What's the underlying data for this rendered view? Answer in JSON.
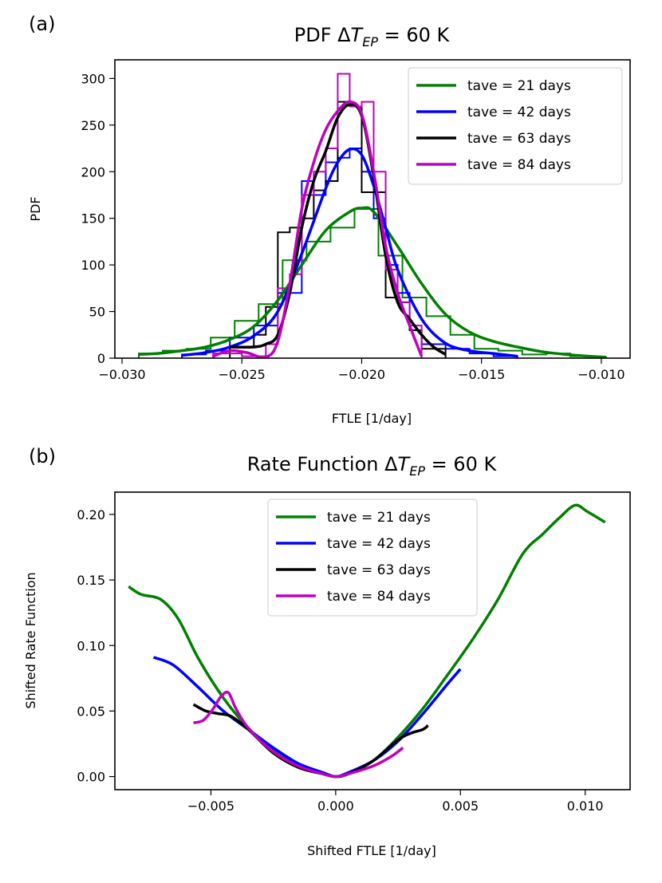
{
  "chart_data": [
    {
      "panel_label": "(a)",
      "type": "line",
      "title": "PDF ΔT_EP = 60 K",
      "title_parts": {
        "pre": "PDF Δ",
        "var": "T",
        "sub": "EP",
        "post": " = 60 K"
      },
      "xlabel": "FTLE [1/day]",
      "ylabel": "PDF",
      "xlim": [
        -0.0303,
        -0.0088
      ],
      "ylim": [
        0,
        320
      ],
      "xticks": [
        -0.03,
        -0.025,
        -0.02,
        -0.015,
        -0.01
      ],
      "xtick_labels": [
        "−0.030",
        "−0.025",
        "−0.020",
        "−0.015",
        "−0.010"
      ],
      "yticks": [
        0,
        50,
        100,
        150,
        200,
        250,
        300
      ],
      "ytick_labels": [
        "0",
        "50",
        "100",
        "150",
        "200",
        "250",
        "300"
      ],
      "legend_position": "upper right",
      "series": [
        {
          "name": "tave = 21 days",
          "color": "#008000",
          "kde": {
            "x": [
              -0.0293,
              -0.0285,
              -0.0275,
              -0.0265,
              -0.0255,
              -0.0245,
              -0.0235,
              -0.0225,
              -0.0215,
              -0.0205,
              -0.02,
              -0.0195,
              -0.0185,
              -0.0175,
              -0.0165,
              -0.0155,
              -0.0145,
              -0.0135,
              -0.0125,
              -0.0115,
              -0.0105,
              -0.0098
            ],
            "y": [
              4,
              5,
              8,
              12,
              20,
              34,
              62,
              100,
              137,
              157,
              161,
              157,
              120,
              80,
              47,
              28,
              18,
              12,
              7,
              4,
              2,
              1
            ]
          },
          "hist": {
            "edges": [
              -0.0293,
              -0.0283,
              -0.0273,
              -0.0263,
              -0.0253,
              -0.0243,
              -0.0233,
              -0.0223,
              -0.0213,
              -0.0203,
              -0.0193,
              -0.0183,
              -0.0173,
              -0.0163,
              -0.0153,
              -0.0143,
              -0.0133,
              -0.0123,
              -0.0113,
              -0.0103,
              -0.0098
            ],
            "counts": [
              5,
              8,
              10,
              22,
              40,
              58,
              105,
              125,
              140,
              160,
              110,
              65,
              45,
              25,
              10,
              8,
              4,
              5,
              2,
              1
            ]
          }
        },
        {
          "name": "tave = 42 days",
          "color": "#0000ff",
          "kde": {
            "x": [
              -0.0275,
              -0.0265,
              -0.0255,
              -0.0245,
              -0.0235,
              -0.0225,
              -0.0215,
              -0.021,
              -0.0205,
              -0.02,
              -0.0195,
              -0.019,
              -0.0185,
              -0.0175,
              -0.0165,
              -0.0155,
              -0.0145,
              -0.0135
            ],
            "y": [
              3,
              6,
              12,
              24,
              50,
              112,
              182,
              210,
              224,
              218,
              185,
              140,
              95,
              42,
              16,
              8,
              5,
              2
            ]
          },
          "hist": {
            "edges": [
              -0.0275,
              -0.0265,
              -0.0255,
              -0.0245,
              -0.0235,
              -0.0225,
              -0.022,
              -0.0215,
              -0.021,
              -0.0205,
              -0.02,
              -0.0195,
              -0.019,
              -0.0185,
              -0.018,
              -0.0175,
              -0.0165,
              -0.0155,
              -0.0145,
              -0.0135
            ],
            "counts": [
              4,
              8,
              22,
              35,
              70,
              190,
              175,
              210,
              215,
              225,
              200,
              150,
              100,
              70,
              30,
              15,
              10,
              5,
              2
            ]
          }
        },
        {
          "name": "tave = 63 days",
          "color": "#000000",
          "kde": {
            "x": [
              -0.0255,
              -0.0245,
              -0.024,
              -0.0235,
              -0.023,
              -0.0225,
              -0.022,
              -0.0215,
              -0.021,
              -0.0205,
              -0.02,
              -0.0195,
              -0.019,
              -0.0185,
              -0.018,
              -0.0175,
              -0.017,
              -0.0165
            ],
            "y": [
              12,
              12,
              15,
              25,
              70,
              140,
              190,
              222,
              258,
              272,
              260,
              195,
              110,
              60,
              42,
              25,
              12,
              4
            ]
          },
          "hist": {
            "edges": [
              -0.0255,
              -0.0245,
              -0.024,
              -0.0235,
              -0.023,
              -0.0225,
              -0.022,
              -0.0215,
              -0.021,
              -0.0205,
              -0.02,
              -0.0195,
              -0.019,
              -0.0185,
              -0.018,
              -0.0175,
              -0.0165
            ],
            "counts": [
              12,
              25,
              55,
              135,
              140,
              150,
              180,
              190,
              275,
              270,
              178,
              178,
              65,
              60,
              30,
              10
            ]
          }
        },
        {
          "name": "tave = 84 days",
          "color": "#bf00bf",
          "kde": {
            "x": [
              -0.0262,
              -0.0255,
              -0.0248,
              -0.024,
              -0.0235,
              -0.023,
              -0.0225,
              -0.022,
              -0.0215,
              -0.021,
              -0.0205,
              -0.02,
              -0.0195,
              -0.019,
              -0.0185,
              -0.018,
              -0.0175
            ],
            "y": [
              2,
              8,
              6,
              1,
              18,
              80,
              160,
              210,
              245,
              265,
              275,
              262,
              200,
              120,
              70,
              35,
              2
            ]
          },
          "hist": {
            "edges": [
              -0.0262,
              -0.025,
              -0.024,
              -0.0235,
              -0.023,
              -0.0225,
              -0.022,
              -0.0215,
              -0.021,
              -0.0205,
              -0.02,
              -0.0195,
              -0.019,
              -0.0185,
              -0.018,
              -0.0175
            ],
            "counts": [
              5,
              2,
              15,
              75,
              90,
              175,
              200,
              225,
              305,
              270,
              275,
              200,
              95,
              60,
              35
            ]
          }
        }
      ]
    },
    {
      "panel_label": "(b)",
      "type": "line",
      "title": "Rate Function ΔT_EP = 60 K",
      "title_parts": {
        "pre": "Rate Function Δ",
        "var": "T",
        "sub": "EP",
        "post": " = 60 K"
      },
      "xlabel": "Shifted FTLE [1/day]",
      "ylabel": "Shifted Rate Function",
      "xlim": [
        -0.00885,
        0.0118
      ],
      "ylim": [
        -0.01,
        0.217
      ],
      "xticks": [
        -0.005,
        0.0,
        0.005,
        0.01
      ],
      "xtick_labels": [
        "−0.005",
        "0.000",
        "0.005",
        "0.010"
      ],
      "yticks": [
        0.0,
        0.05,
        0.1,
        0.15,
        0.2
      ],
      "ytick_labels": [
        "0.00",
        "0.05",
        "0.10",
        "0.15",
        "0.20"
      ],
      "legend_position": "upper center",
      "series": [
        {
          "name": "tave = 21 days",
          "color": "#008000",
          "x": [
            -0.0083,
            -0.0078,
            -0.007,
            -0.0063,
            -0.0055,
            -0.0045,
            -0.0035,
            -0.0025,
            -0.0015,
            -0.0005,
            0.0,
            0.0005,
            0.0015,
            0.0025,
            0.0035,
            0.0045,
            0.0055,
            0.0065,
            0.0075,
            0.0083,
            0.009,
            0.0096,
            0.0101,
            0.0108
          ],
          "y": [
            0.145,
            0.139,
            0.135,
            0.12,
            0.09,
            0.06,
            0.037,
            0.02,
            0.008,
            0.002,
            0.0,
            0.002,
            0.012,
            0.03,
            0.052,
            0.078,
            0.105,
            0.135,
            0.17,
            0.185,
            0.198,
            0.207,
            0.202,
            0.194
          ]
        },
        {
          "name": "tave = 42 days",
          "color": "#0000ff",
          "x": [
            -0.0073,
            -0.0065,
            -0.0055,
            -0.0045,
            -0.0035,
            -0.0025,
            -0.0015,
            -0.0005,
            0.0,
            0.0005,
            0.0015,
            0.0025,
            0.0035,
            0.0045,
            0.005
          ],
          "y": [
            0.091,
            0.085,
            0.068,
            0.05,
            0.036,
            0.022,
            0.01,
            0.003,
            0.0,
            0.003,
            0.012,
            0.027,
            0.048,
            0.071,
            0.082
          ]
        },
        {
          "name": "tave = 63 days",
          "color": "#000000",
          "x": [
            -0.0057,
            -0.0052,
            -0.0047,
            -0.0042,
            -0.0035,
            -0.0025,
            -0.0015,
            -0.0005,
            0.0,
            0.0005,
            0.0015,
            0.0025,
            0.003,
            0.0035,
            0.0037
          ],
          "y": [
            0.055,
            0.05,
            0.048,
            0.046,
            0.036,
            0.018,
            0.007,
            0.002,
            0.0,
            0.002,
            0.012,
            0.028,
            0.033,
            0.036,
            0.039
          ]
        },
        {
          "name": "tave = 84 days",
          "color": "#bf00bf",
          "x": [
            -0.0057,
            -0.0053,
            -0.0049,
            -0.0046,
            -0.0043,
            -0.004,
            -0.0035,
            -0.0025,
            -0.0015,
            -0.0005,
            0.0,
            0.0005,
            0.0015,
            0.0022,
            0.0027
          ],
          "y": [
            0.041,
            0.043,
            0.052,
            0.061,
            0.064,
            0.052,
            0.037,
            0.019,
            0.008,
            0.002,
            0.0,
            0.002,
            0.008,
            0.015,
            0.022
          ]
        }
      ]
    }
  ]
}
